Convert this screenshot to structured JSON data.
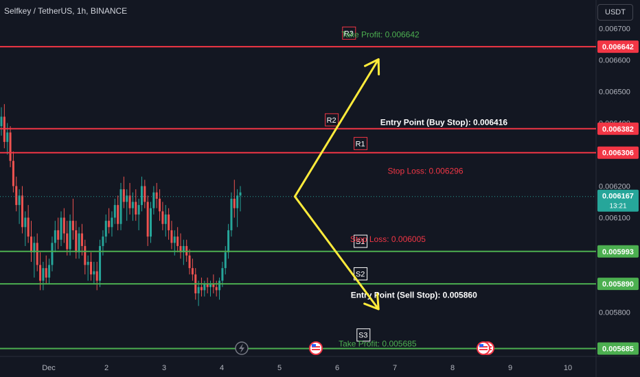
{
  "header": {
    "symbol": "Selfkey / TetherUS, 1h, BINANCE",
    "currency_button": "USDT"
  },
  "colors": {
    "background": "#131722",
    "up": "#26a69a",
    "down": "#ef5350",
    "resistance": "#f23645",
    "support": "#4caf50",
    "arrow": "#ffeb3b",
    "text": "#d1d4dc"
  },
  "chart_data": {
    "type": "candlestick",
    "ylim": [
      0.00566,
      0.00679
    ],
    "y_ticks": [
      "0.006700",
      "0.006600",
      "0.006500",
      "0.006400",
      "0.006200",
      "0.006100",
      "0.005800"
    ],
    "x_ticks": [
      {
        "label": "Dec",
        "day": 0
      },
      {
        "label": "2",
        "day": 1
      },
      {
        "label": "3",
        "day": 2
      },
      {
        "label": "4",
        "day": 3
      },
      {
        "label": "5",
        "day": 4
      },
      {
        "label": "6",
        "day": 5
      },
      {
        "label": "7",
        "day": 6
      },
      {
        "label": "8",
        "day": 7
      },
      {
        "label": "9",
        "day": 8
      },
      {
        "label": "10",
        "day": 9
      }
    ],
    "levels": [
      {
        "name": "R3",
        "price": 0.006642,
        "tag": "0.006642",
        "kind": "resistance"
      },
      {
        "name": "R2",
        "price": 0.006382,
        "tag": "0.006382",
        "kind": "resistance"
      },
      {
        "name": "R1",
        "price": 0.006306,
        "tag": "0.006306",
        "kind": "resistance"
      },
      {
        "name": "S1",
        "price": 0.005993,
        "tag": "0.005993",
        "kind": "support"
      },
      {
        "name": "S2",
        "price": 0.00589,
        "tag": "0.005890",
        "kind": "support"
      },
      {
        "name": "S3",
        "price": 0.005685,
        "tag": "0.005685",
        "kind": "support"
      }
    ],
    "annotations": [
      {
        "text": "Take Profit: 0.006642",
        "price": 0.00668,
        "day": 5.75,
        "color": "#4caf50",
        "bold": false
      },
      {
        "text": "Entry Point (Buy Stop): 0.006416",
        "price": 0.006402,
        "day": 6.85,
        "color": "#ffffff",
        "bold": true
      },
      {
        "text": "Stop Loss: 0.006296",
        "price": 0.006248,
        "day": 6.53,
        "color": "#f23645",
        "bold": false
      },
      {
        "text": "Stop Loss: 0.006005",
        "price": 0.006032,
        "day": 5.88,
        "color": "#f23645",
        "bold": false
      },
      {
        "text": "Entry Point (Sell Stop): 0.005860",
        "price": 0.005855,
        "day": 6.33,
        "color": "#ffffff",
        "bold": true
      },
      {
        "text": "Take Profit: 0.005685",
        "price": 0.0057,
        "day": 5.7,
        "color": "#4caf50",
        "bold": false
      }
    ],
    "last_price": {
      "value": 0.006167,
      "label": "0.006167",
      "countdown": "13:21"
    },
    "arrows": [
      {
        "from": [
          4.35,
          0.006167
        ],
        "to": [
          5.8,
          0.006602
        ]
      },
      {
        "from": [
          4.35,
          0.006167
        ],
        "to": [
          5.8,
          0.00581
        ]
      }
    ],
    "candles_ohlc": [
      [
        0.00639,
        0.00645,
        0.00636,
        0.00642
      ],
      [
        0.00642,
        0.00646,
        0.00632,
        0.00634
      ],
      [
        0.00634,
        0.0064,
        0.0063,
        0.00637
      ],
      [
        0.00637,
        0.00639,
        0.00626,
        0.00628
      ],
      [
        0.00628,
        0.00631,
        0.00618,
        0.0062
      ],
      [
        0.0062,
        0.00623,
        0.00612,
        0.00614
      ],
      [
        0.00614,
        0.00619,
        0.00608,
        0.00617
      ],
      [
        0.00617,
        0.0062,
        0.00605,
        0.00607
      ],
      [
        0.00607,
        0.00612,
        0.00601,
        0.0061
      ],
      [
        0.0061,
        0.00614,
        0.00602,
        0.00604
      ],
      [
        0.00604,
        0.00609,
        0.00596,
        0.00599
      ],
      [
        0.00599,
        0.00604,
        0.00591,
        0.00602
      ],
      [
        0.00602,
        0.00605,
        0.00593,
        0.00595
      ],
      [
        0.00595,
        0.00599,
        0.00587,
        0.0059
      ],
      [
        0.0059,
        0.00596,
        0.00587,
        0.00594
      ],
      [
        0.00594,
        0.00598,
        0.00589,
        0.00591
      ],
      [
        0.00591,
        0.00597,
        0.00589,
        0.00595
      ],
      [
        0.00595,
        0.00604,
        0.00593,
        0.00602
      ],
      [
        0.00602,
        0.00609,
        0.00599,
        0.00606
      ],
      [
        0.00606,
        0.0061,
        0.006,
        0.00603
      ],
      [
        0.00603,
        0.00612,
        0.00601,
        0.0061
      ],
      [
        0.0061,
        0.00613,
        0.00602,
        0.00605
      ],
      [
        0.00605,
        0.00609,
        0.00598,
        0.006
      ],
      [
        0.006,
        0.00611,
        0.00598,
        0.00609
      ],
      [
        0.00609,
        0.00616,
        0.00603,
        0.00606
      ],
      [
        0.00606,
        0.00609,
        0.00597,
        0.00599
      ],
      [
        0.00599,
        0.00607,
        0.00597,
        0.00605
      ],
      [
        0.00605,
        0.00608,
        0.00598,
        0.00601
      ],
      [
        0.00601,
        0.00603,
        0.00592,
        0.00595
      ],
      [
        0.00595,
        0.00598,
        0.0059,
        0.00596
      ],
      [
        0.00596,
        0.00599,
        0.0059,
        0.00592
      ],
      [
        0.00592,
        0.00596,
        0.00589,
        0.00593
      ],
      [
        0.00593,
        0.00596,
        0.00587,
        0.0059
      ],
      [
        0.0059,
        0.00603,
        0.00588,
        0.00601
      ],
      [
        0.00601,
        0.00606,
        0.00598,
        0.00604
      ],
      [
        0.00604,
        0.00611,
        0.00602,
        0.00609
      ],
      [
        0.00609,
        0.00613,
        0.00605,
        0.00607
      ],
      [
        0.00607,
        0.00612,
        0.00604,
        0.0061
      ],
      [
        0.0061,
        0.00616,
        0.00608,
        0.00614
      ],
      [
        0.00614,
        0.00617,
        0.00606,
        0.00608
      ],
      [
        0.00608,
        0.00621,
        0.00606,
        0.00619
      ],
      [
        0.00619,
        0.00623,
        0.00613,
        0.00615
      ],
      [
        0.00615,
        0.00619,
        0.00609,
        0.00617
      ],
      [
        0.00617,
        0.00621,
        0.00611,
        0.00613
      ],
      [
        0.00613,
        0.00618,
        0.00609,
        0.00615
      ],
      [
        0.00615,
        0.00619,
        0.00609,
        0.00611
      ],
      [
        0.00611,
        0.00616,
        0.00606,
        0.00614
      ],
      [
        0.00614,
        0.00623,
        0.00612,
        0.0062
      ],
      [
        0.0062,
        0.00622,
        0.00613,
        0.00615
      ],
      [
        0.00615,
        0.00617,
        0.00601,
        0.00604
      ],
      [
        0.00604,
        0.00615,
        0.00602,
        0.00613
      ],
      [
        0.00613,
        0.0062,
        0.00611,
        0.00618
      ],
      [
        0.00618,
        0.00621,
        0.00613,
        0.00616
      ],
      [
        0.00616,
        0.00619,
        0.00609,
        0.00612
      ],
      [
        0.00612,
        0.00615,
        0.00606,
        0.00608
      ],
      [
        0.00608,
        0.00614,
        0.00604,
        0.00611
      ],
      [
        0.00611,
        0.00613,
        0.00603,
        0.00606
      ],
      [
        0.00606,
        0.00609,
        0.006,
        0.00602
      ],
      [
        0.00602,
        0.00606,
        0.00598,
        0.00604
      ],
      [
        0.00604,
        0.00607,
        0.00599,
        0.00601
      ],
      [
        0.00601,
        0.00605,
        0.00597,
        0.00599
      ],
      [
        0.00599,
        0.00603,
        0.00595,
        0.00601
      ],
      [
        0.00601,
        0.00603,
        0.00596,
        0.00598
      ],
      [
        0.00598,
        0.006,
        0.00592,
        0.00594
      ],
      [
        0.00594,
        0.00597,
        0.0059,
        0.00592
      ],
      [
        0.00592,
        0.00594,
        0.00584,
        0.00586
      ],
      [
        0.00586,
        0.0059,
        0.00582,
        0.00588
      ],
      [
        0.00588,
        0.00591,
        0.00585,
        0.00587
      ],
      [
        0.00587,
        0.0059,
        0.00585,
        0.00589
      ],
      [
        0.00589,
        0.00591,
        0.00586,
        0.00588
      ],
      [
        0.00588,
        0.0059,
        0.00585,
        0.00589
      ],
      [
        0.00589,
        0.00592,
        0.00586,
        0.00588
      ],
      [
        0.00588,
        0.0059,
        0.00585,
        0.00587
      ],
      [
        0.00587,
        0.00591,
        0.00584,
        0.0059
      ],
      [
        0.0059,
        0.00596,
        0.00588,
        0.00594
      ],
      [
        0.00594,
        0.00601,
        0.00592,
        0.00599
      ],
      [
        0.00599,
        0.00608,
        0.00597,
        0.00606
      ],
      [
        0.00606,
        0.00618,
        0.00604,
        0.00616
      ],
      [
        0.00616,
        0.00622,
        0.0061,
        0.00613
      ],
      [
        0.00613,
        0.00619,
        0.00607,
        0.00617
      ],
      [
        0.00617,
        0.0062,
        0.00612,
        0.00618
      ]
    ]
  },
  "icons": [
    "lightning-event-icon",
    "us-flag-event-icon",
    "us-flag-event-icon"
  ]
}
